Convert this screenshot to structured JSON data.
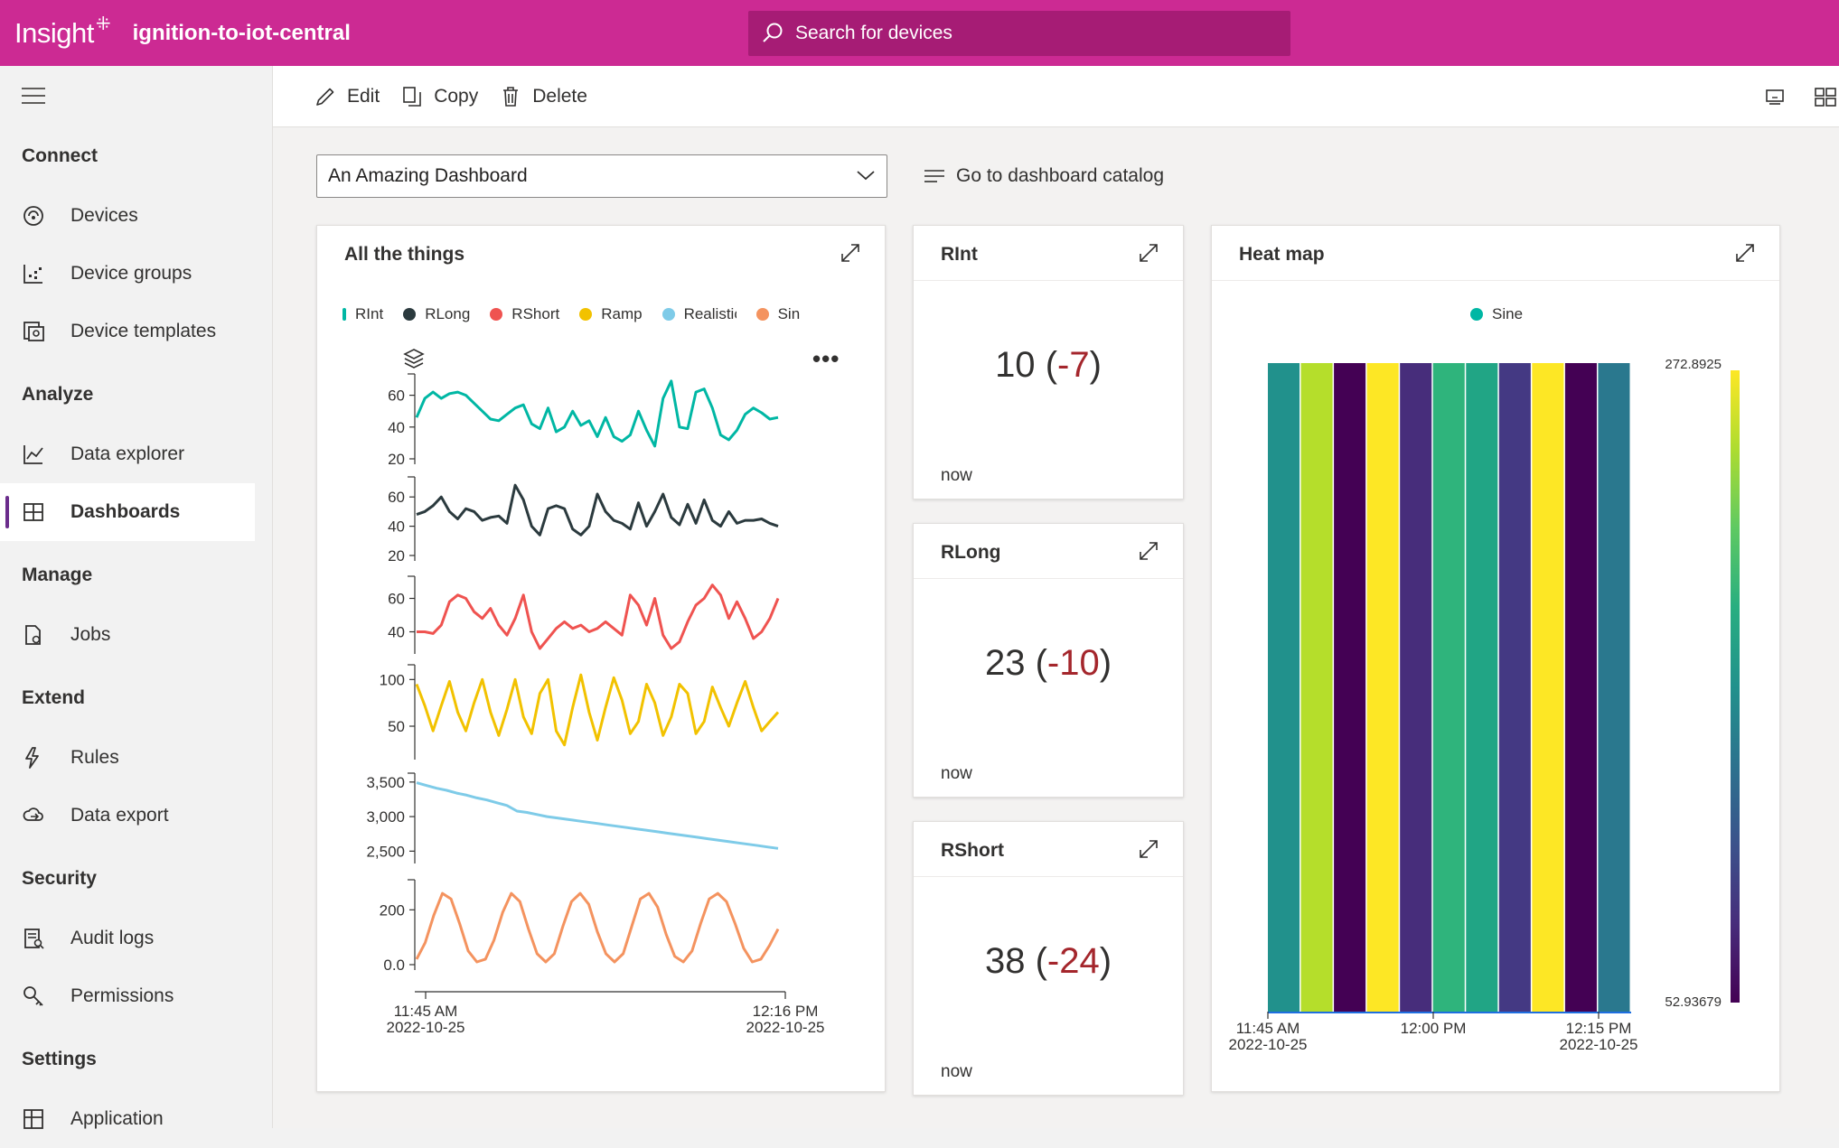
{
  "topbar": {
    "brand": "Insight",
    "app_name": "ignition-to-iot-central",
    "search_placeholder": "Search for devices"
  },
  "sidebar": {
    "sections": [
      {
        "label": "Connect",
        "items": [
          {
            "label": "Devices",
            "icon": "devices-icon"
          },
          {
            "label": "Device groups",
            "icon": "device-groups-icon"
          },
          {
            "label": "Device templates",
            "icon": "device-templates-icon"
          }
        ]
      },
      {
        "label": "Analyze",
        "items": [
          {
            "label": "Data explorer",
            "icon": "data-explorer-icon"
          },
          {
            "label": "Dashboards",
            "icon": "dashboards-icon",
            "active": true
          }
        ]
      },
      {
        "label": "Manage",
        "items": [
          {
            "label": "Jobs",
            "icon": "jobs-icon"
          }
        ]
      },
      {
        "label": "Extend",
        "items": [
          {
            "label": "Rules",
            "icon": "rules-icon"
          },
          {
            "label": "Data export",
            "icon": "data-export-icon"
          }
        ]
      },
      {
        "label": "Security",
        "items": [
          {
            "label": "Audit logs",
            "icon": "audit-logs-icon"
          },
          {
            "label": "Permissions",
            "icon": "permissions-icon"
          }
        ]
      },
      {
        "label": "Settings",
        "items": [
          {
            "label": "Application",
            "icon": "application-icon"
          }
        ]
      }
    ]
  },
  "commands": {
    "edit": "Edit",
    "copy": "Copy",
    "delete": "Delete"
  },
  "dashboard": {
    "selected": "An Amazing Dashboard",
    "catalog_link": "Go to dashboard catalog"
  },
  "tiles": {
    "all_things": {
      "title": "All the things",
      "legend": [
        {
          "name": "RInt",
          "color": "#00b7a4"
        },
        {
          "name": "RLong",
          "color": "#2b3a3e"
        },
        {
          "name": "RShort",
          "color": "#ef5350"
        },
        {
          "name": "Ramp",
          "color": "#f2c200"
        },
        {
          "name": "Realistic",
          "color": "#7ecbe8"
        },
        {
          "name": "Sin",
          "color": "#f4935f"
        }
      ]
    },
    "rint": {
      "title": "RInt",
      "value": "10",
      "delta": "-7",
      "time": "now"
    },
    "rlong": {
      "title": "RLong",
      "value": "23",
      "delta": "-10",
      "time": "now"
    },
    "rshort": {
      "title": "RShort",
      "value": "38",
      "delta": "-24",
      "time": "now"
    },
    "heatmap": {
      "title": "Heat map",
      "legend": "Sine"
    }
  },
  "chart_data": [
    {
      "type": "line",
      "title": "All the things",
      "x_start": "11:45 AM 2022-10-25",
      "x_end": "12:16 PM 2022-10-25",
      "x_tick_labels": [
        [
          "11:45 AM",
          "2022-10-25"
        ],
        [
          "12:16 PM",
          "2022-10-25"
        ]
      ],
      "series": [
        {
          "name": "RInt",
          "color": "#00b7a4",
          "y_ticks": [
            "60",
            "40",
            "20"
          ],
          "ylim": [
            20,
            70
          ],
          "values": [
            46,
            58,
            62,
            58,
            61,
            62,
            60,
            55,
            50,
            45,
            44,
            48,
            52,
            54,
            42,
            39,
            52,
            37,
            40,
            50,
            41,
            44,
            34,
            46,
            34,
            31,
            35,
            50,
            38,
            28,
            58,
            69,
            40,
            39,
            62,
            64,
            52,
            35,
            32,
            38,
            48,
            52,
            49,
            45,
            46
          ]
        },
        {
          "name": "RLong",
          "color": "#2b3a3e",
          "y_ticks": [
            "60",
            "40",
            "20"
          ],
          "ylim": [
            20,
            70
          ],
          "values": [
            48,
            50,
            54,
            60,
            50,
            45,
            52,
            50,
            44,
            46,
            47,
            42,
            68,
            58,
            40,
            34,
            52,
            54,
            52,
            38,
            34,
            40,
            62,
            50,
            44,
            42,
            38,
            56,
            40,
            50,
            62,
            46,
            41,
            55,
            42,
            58,
            44,
            40,
            50,
            42,
            44,
            44,
            45,
            42,
            40
          ]
        },
        {
          "name": "RShort",
          "color": "#ef5350",
          "y_ticks": [
            "60",
            "40"
          ],
          "ylim": [
            30,
            70
          ],
          "values": [
            40,
            40,
            39,
            44,
            58,
            62,
            60,
            52,
            48,
            54,
            44,
            38,
            48,
            62,
            40,
            30,
            36,
            42,
            46,
            42,
            44,
            40,
            42,
            46,
            42,
            38,
            62,
            56,
            44,
            60,
            38,
            30,
            34,
            46,
            56,
            60,
            68,
            62,
            48,
            58,
            48,
            36,
            40,
            48,
            60
          ]
        },
        {
          "name": "Ramp",
          "color": "#f2c200",
          "y_ticks": [
            "100",
            "50"
          ],
          "ylim": [
            20,
            110
          ],
          "values": [
            95,
            72,
            45,
            72,
            98,
            65,
            45,
            75,
            100,
            65,
            40,
            68,
            100,
            60,
            42,
            85,
            100,
            45,
            30,
            70,
            105,
            65,
            35,
            70,
            102,
            78,
            42,
            55,
            95,
            75,
            40,
            60,
            95,
            85,
            42,
            55,
            92,
            70,
            50,
            75,
            98,
            70,
            45,
            55,
            65
          ]
        },
        {
          "name": "Realistic",
          "color": "#7ecbe8",
          "y_ticks": [
            "3,500",
            "3,000",
            "2,500"
          ],
          "ylim": [
            2400,
            3550
          ],
          "values": [
            3490,
            3450,
            3410,
            3380,
            3340,
            3310,
            3270,
            3240,
            3200,
            3160,
            3080,
            3060,
            3030,
            3000,
            2980,
            2960,
            2940,
            2920,
            2900,
            2880,
            2860,
            2840,
            2820,
            2800,
            2780,
            2760,
            2740,
            2720,
            2700,
            2680,
            2660,
            2640,
            2620,
            2600,
            2580,
            2560,
            2540
          ]
        },
        {
          "name": "Sin",
          "color": "#f4935f",
          "y_ticks": [
            "200",
            "0.0"
          ],
          "ylim": [
            0,
            290
          ],
          "values": [
            20,
            80,
            180,
            260,
            240,
            150,
            50,
            10,
            20,
            90,
            190,
            260,
            230,
            130,
            40,
            10,
            40,
            140,
            230,
            260,
            220,
            120,
            40,
            10,
            40,
            140,
            240,
            260,
            210,
            110,
            30,
            10,
            50,
            150,
            240,
            260,
            230,
            150,
            60,
            10,
            20,
            70,
            130
          ]
        }
      ]
    },
    {
      "type": "heatmap",
      "title": "Heat map",
      "series": [
        {
          "name": "Sine",
          "values": [
            131,
            228,
            53,
            272,
            70,
            146,
            170,
            80,
            272,
            53,
            120
          ]
        }
      ],
      "color_scale": {
        "min": 52.93679,
        "max": 272.8925,
        "min_label": "52.93679",
        "max_label": "272.8925"
      },
      "x_tick_labels": [
        [
          "11:45 AM",
          "2022-10-25"
        ],
        [
          "12:00 PM",
          ""
        ],
        [
          "12:15 PM",
          "2022-10-25"
        ]
      ],
      "colors": [
        "#21918c",
        "#b5de2b",
        "#440154",
        "#fde725",
        "#472d7b",
        "#2fb47c",
        "#21a585",
        "#443983",
        "#fde725",
        "#440154",
        "#2a788e"
      ]
    }
  ]
}
